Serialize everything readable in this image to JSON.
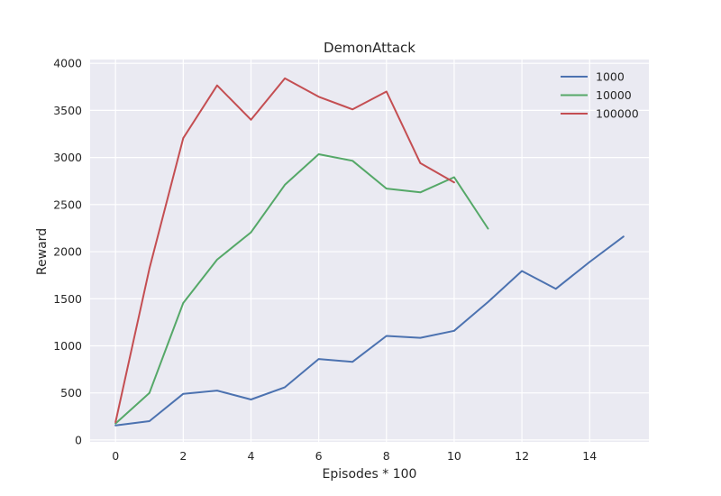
{
  "chart_data": {
    "type": "line",
    "title": "DemonAttack",
    "xlabel": "Episodes * 100",
    "ylabel": "Reward",
    "xlim": [
      -0.75,
      15.75
    ],
    "ylim": [
      -20,
      4040
    ],
    "xticks": [
      0,
      2,
      4,
      6,
      8,
      10,
      12,
      14
    ],
    "yticks": [
      0,
      500,
      1000,
      1500,
      2000,
      2500,
      3000,
      3500,
      4000
    ],
    "grid": true,
    "legend_position": "top-right",
    "series": [
      {
        "name": "1000",
        "color": "#4c72b0",
        "x": [
          0,
          1,
          2,
          3,
          4,
          5,
          6,
          7,
          8,
          9,
          10,
          11,
          12,
          13,
          14,
          15
        ],
        "y": [
          155,
          200,
          490,
          525,
          430,
          560,
          860,
          830,
          1105,
          1085,
          1160,
          1465,
          1795,
          1605,
          1890,
          2160
        ]
      },
      {
        "name": "10000",
        "color": "#55a868",
        "x": [
          0,
          1,
          2,
          3,
          4,
          5,
          6,
          7,
          8,
          9,
          10,
          11
        ],
        "y": [
          175,
          500,
          1455,
          1915,
          2205,
          2710,
          3035,
          2965,
          2670,
          2630,
          2790,
          2245
        ]
      },
      {
        "name": "100000",
        "color": "#c44e52",
        "x": [
          0,
          1,
          2,
          3,
          4,
          5,
          6,
          7,
          8,
          9,
          10
        ],
        "y": [
          190,
          1820,
          3205,
          3765,
          3400,
          3840,
          3645,
          3510,
          3700,
          2940,
          2735
        ]
      }
    ]
  }
}
